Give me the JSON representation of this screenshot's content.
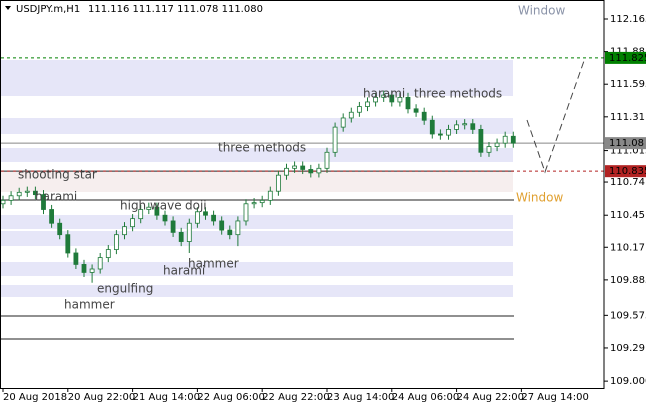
{
  "chart_data": {
    "type": "candlestick",
    "header": {
      "symbol": "USDJPY.m,H1",
      "ohlc": "111.116 111.117 111.078 111.080"
    },
    "bull_color": "#ffffff",
    "bear_color": "#1f7a3a",
    "outline_color": "#1f7a3a",
    "open": [
      110.55,
      110.58,
      110.62,
      110.65,
      110.66,
      110.63,
      110.5,
      110.38,
      110.28,
      110.12,
      110.02,
      109.95,
      109.98,
      110.08,
      110.15,
      110.28,
      110.35,
      110.42,
      110.5,
      110.52,
      110.45,
      110.4,
      110.3,
      110.22,
      110.38,
      110.48,
      110.45,
      110.4,
      110.32,
      110.28,
      110.4,
      110.55,
      110.56,
      110.58,
      110.66,
      110.8,
      110.86,
      110.88,
      110.85,
      110.82,
      110.86,
      111.0,
      111.22,
      111.3,
      111.35,
      111.4,
      111.44,
      111.48,
      111.5,
      111.44,
      111.48,
      111.38,
      111.35,
      111.28,
      111.16,
      111.15,
      111.2,
      111.24,
      111.25,
      111.2,
      111.0,
      111.05,
      111.08,
      111.14
    ],
    "high": [
      110.62,
      110.66,
      110.69,
      110.7,
      110.7,
      110.67,
      110.54,
      110.42,
      110.32,
      110.16,
      110.06,
      110.02,
      110.12,
      110.19,
      110.32,
      110.39,
      110.46,
      110.54,
      110.56,
      110.56,
      110.49,
      110.44,
      110.34,
      110.42,
      110.52,
      110.52,
      110.49,
      110.44,
      110.36,
      110.44,
      110.59,
      110.6,
      110.62,
      110.7,
      110.84,
      110.9,
      110.92,
      110.92,
      110.89,
      110.9,
      111.04,
      111.26,
      111.34,
      111.39,
      111.44,
      111.48,
      111.52,
      111.54,
      111.54,
      111.52,
      111.52,
      111.42,
      111.39,
      111.32,
      111.2,
      111.24,
      111.28,
      111.29,
      111.29,
      111.24,
      111.09,
      111.12,
      111.18,
      111.18
    ],
    "low": [
      110.51,
      110.54,
      110.58,
      110.61,
      110.59,
      110.46,
      110.34,
      110.24,
      110.08,
      109.98,
      109.91,
      109.86,
      109.94,
      110.04,
      110.11,
      110.24,
      110.31,
      110.38,
      110.46,
      110.41,
      110.36,
      110.26,
      110.18,
      110.12,
      110.34,
      110.41,
      110.36,
      110.28,
      110.24,
      110.18,
      110.36,
      110.51,
      110.52,
      110.54,
      110.62,
      110.76,
      110.82,
      110.81,
      110.78,
      110.78,
      110.82,
      110.96,
      111.18,
      111.26,
      111.31,
      111.36,
      111.4,
      111.44,
      111.4,
      111.4,
      111.34,
      111.31,
      111.24,
      111.12,
      111.11,
      111.11,
      111.16,
      111.2,
      111.16,
      110.96,
      110.96,
      111.01,
      111.04,
      111.04
    ],
    "close": [
      110.58,
      110.62,
      110.65,
      110.66,
      110.63,
      110.5,
      110.38,
      110.28,
      110.12,
      110.02,
      109.95,
      109.98,
      110.08,
      110.15,
      110.28,
      110.35,
      110.42,
      110.5,
      110.52,
      110.45,
      110.4,
      110.3,
      110.22,
      110.38,
      110.48,
      110.45,
      110.4,
      110.32,
      110.28,
      110.4,
      110.55,
      110.56,
      110.58,
      110.66,
      110.8,
      110.86,
      110.88,
      110.85,
      110.82,
      110.86,
      111.0,
      111.22,
      111.3,
      111.35,
      111.4,
      111.44,
      111.48,
      111.5,
      111.44,
      111.48,
      111.38,
      111.35,
      111.28,
      111.16,
      111.15,
      111.2,
      111.24,
      111.25,
      111.2,
      111.0,
      111.05,
      111.08,
      111.14,
      111.08
    ],
    "xlim": [
      0,
      74.2
    ],
    "xticks": [
      {
        "value": 0,
        "label": "20 Aug 2018"
      },
      {
        "value": 8,
        "label": "20 Aug 22:00"
      },
      {
        "value": 16,
        "label": "21 Aug 14:00"
      },
      {
        "value": 24,
        "label": "22 Aug 06:00"
      },
      {
        "value": 32,
        "label": "22 Aug 22:00"
      },
      {
        "value": 40,
        "label": "23 Aug 14:00"
      },
      {
        "value": 48,
        "label": "24 Aug 06:00"
      },
      {
        "value": 56,
        "label": "24 Aug 22:00"
      },
      {
        "value": 64,
        "label": "27 Aug 14:00"
      }
    ],
    "ylim": [
      108.94,
      112.331
    ],
    "yticks": [
      112.165,
      111.88,
      111.595,
      111.31,
      111.015,
      110.74,
      110.45,
      110.17,
      109.885,
      109.575,
      109.29,
      {
        "value": 109.0,
        "label": "109.000"
      }
    ],
    "levels": [
      {
        "value": 111.825,
        "color": "#008000",
        "dashed": true
      },
      {
        "value": 111.08,
        "color": "#888888",
        "dashed": false
      },
      {
        "value": 110.835,
        "color": "#b22222",
        "dashed": true
      }
    ],
    "hlines": [
      110.835,
      110.583,
      109.569,
      109.368
    ],
    "annotations": [
      "Window",
      "three methods",
      "harami",
      "three methods",
      "shooting star",
      "harami",
      "high wave",
      "doji",
      "hammer",
      "harami",
      "engulfing",
      "hammer",
      "Window"
    ]
  }
}
